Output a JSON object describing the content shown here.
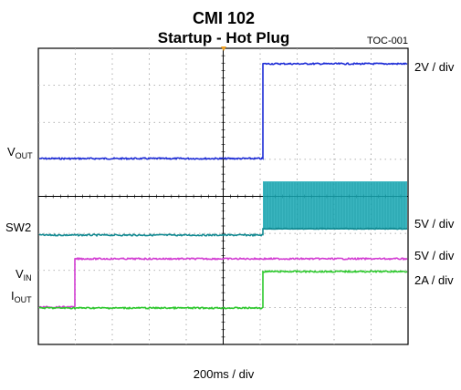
{
  "chart_data": {
    "type": "line",
    "title": "CMI 102",
    "subtitle": "Startup - Hot Plug",
    "figure_id": "TOC-001",
    "xlabel": "200ms / div",
    "grid": true,
    "channels": [
      {
        "name": "VOUT",
        "name_main": "V",
        "name_sub": "OUT",
        "color": "#1c2bd6",
        "scale": "2V / div",
        "scale_color": "#000000"
      },
      {
        "name": "SW2",
        "name_main": "SW2",
        "name_sub": "",
        "color": "#17a8b4",
        "scale": "5V / div",
        "scale_color": "#000000"
      },
      {
        "name": "VIN",
        "name_main": "V",
        "name_sub": "IN",
        "color": "#d23bd2",
        "scale": "5V / div",
        "scale_color": "#000000"
      },
      {
        "name": "IOUT",
        "name_main": "I",
        "name_sub": "OUT",
        "color": "#2cc82c",
        "scale": "2A / div",
        "scale_color": "#000000"
      }
    ]
  }
}
